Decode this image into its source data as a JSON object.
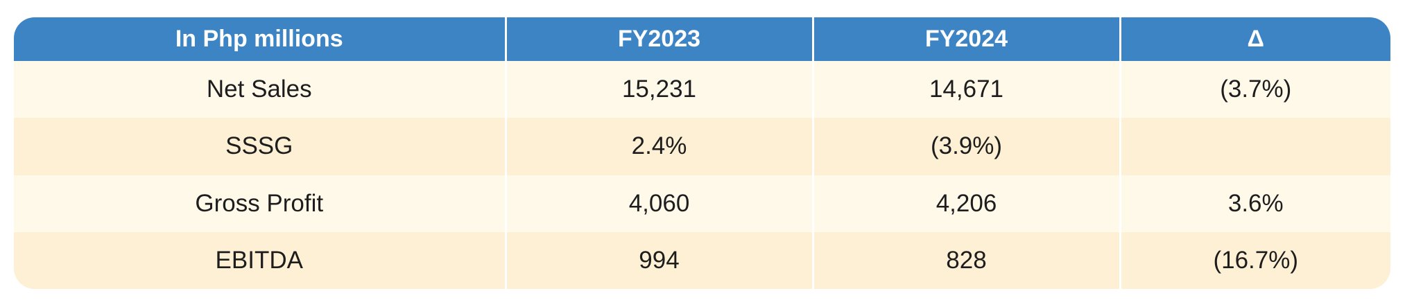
{
  "table": {
    "headers": [
      "In Php millions",
      "FY2023",
      "FY2024",
      "Δ"
    ],
    "rows": [
      {
        "label": "Net Sales",
        "fy2023": "15,231",
        "fy2024": "14,671",
        "delta": "(3.7%)"
      },
      {
        "label": "SSSG",
        "fy2023": "2.4%",
        "fy2024": "(3.9%)",
        "delta": ""
      },
      {
        "label": "Gross Profit",
        "fy2023": "4,060",
        "fy2024": "4,206",
        "delta": "3.6%"
      },
      {
        "label": "EBITDA",
        "fy2023": "994",
        "fy2024": "828",
        "delta": "(16.7%)"
      }
    ]
  },
  "colors": {
    "header_bg": "#3d84c5",
    "row_light": "#fff9ea",
    "row_dark": "#fdf0d4"
  }
}
